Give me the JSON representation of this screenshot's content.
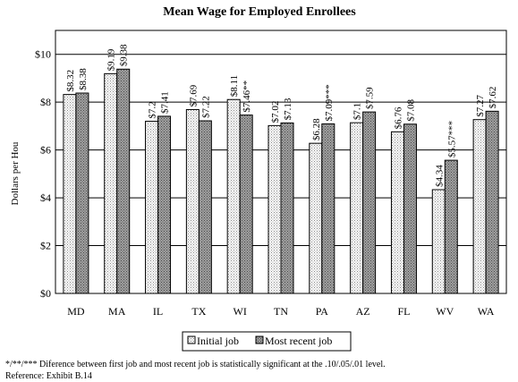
{
  "chart_data": {
    "type": "bar",
    "title": "Mean Wage for Employed Enrollees",
    "xlabel": "",
    "ylabel": "Dollars per Hou",
    "ylim": [
      0,
      11
    ],
    "yticks": [
      0,
      2,
      4,
      6,
      8,
      10
    ],
    "ytick_labels": [
      "$0",
      "$2",
      "$4",
      "$6",
      "$8",
      "$10"
    ],
    "grid": true,
    "legend_position": "bottom-center",
    "categories": [
      "MD",
      "MA",
      "IL",
      "TX",
      "WI",
      "TN",
      "PA",
      "AZ",
      "FL",
      "WV",
      "WA"
    ],
    "series": [
      {
        "name": "Initial job",
        "fill": "dotted-light",
        "values": [
          8.32,
          9.19,
          7.2,
          7.69,
          8.11,
          7.02,
          6.28,
          7.14,
          6.76,
          4.34,
          7.27
        ],
        "labels": [
          "$8.32",
          "$9.19",
          "$7.2",
          "$7.69",
          "$8.11",
          "$7.02",
          "$6.28",
          "$7.1",
          "$6.76",
          "$4.34",
          "$7.27"
        ]
      },
      {
        "name": "Most recent job",
        "fill": "dotted-dark",
        "values": [
          8.38,
          9.38,
          7.41,
          7.22,
          7.46,
          7.13,
          7.09,
          7.59,
          7.08,
          5.57,
          7.62
        ],
        "labels": [
          "$8.38",
          "$9.38",
          "$7.41",
          "$7.22",
          "$7.46**",
          "$7.13",
          "$7.09***",
          "$7.59",
          "$7.08",
          "$5.57***",
          "$7.62"
        ]
      }
    ]
  },
  "footnote": "*/**/*** Diference between first job and most recent job is statistically significant at the .10/.05/.01 level.",
  "reference": "Reference:  Exhibit B.14"
}
